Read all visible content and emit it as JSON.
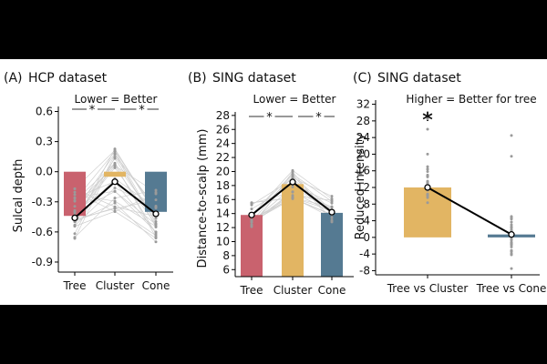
{
  "chart_data": [
    {
      "type": "bar",
      "panel_label": "(A)",
      "title": "HCP dataset",
      "annotation": "Lower = Better",
      "significance": [
        "*",
        "*"
      ],
      "categories": [
        "Tree",
        "Cluster",
        "Cone"
      ],
      "values": [
        -0.44,
        -0.05,
        -0.4
      ],
      "mean_line": [
        -0.46,
        -0.1,
        -0.42
      ],
      "error": [
        0.02,
        0.02,
        0.02
      ],
      "colors": [
        "#c9626e",
        "#e2b563",
        "#557a92"
      ],
      "ylabel": "Sulcal depth",
      "xlabel": "",
      "yticks": [
        "0.6",
        "0.3",
        "0.0",
        "-0.3",
        "-0.6",
        "-0.9"
      ],
      "ylim": [
        -1.0,
        0.65
      ]
    },
    {
      "type": "bar",
      "panel_label": "(B)",
      "title": "SING dataset",
      "annotation": "Lower = Better",
      "significance": [
        "*",
        "*"
      ],
      "categories": [
        "Tree",
        "Cluster",
        "Cone"
      ],
      "values": [
        13.8,
        18.2,
        14.1
      ],
      "mean_line": [
        13.8,
        18.5,
        14.2
      ],
      "error": [
        0.3,
        0.4,
        0.3
      ],
      "colors": [
        "#c9626e",
        "#e2b563",
        "#557a92"
      ],
      "ylabel": "Distance-to-scalp (mm)",
      "xlabel": "",
      "yticks": [
        "28",
        "26",
        "24",
        "22",
        "20",
        "18",
        "16",
        "14",
        "12",
        "10",
        "8",
        "6"
      ],
      "ylim": [
        5,
        28.5
      ]
    },
    {
      "type": "bar",
      "panel_label": "(C)",
      "title": "SING dataset",
      "annotation": "Higher = Better for tree",
      "significance": [
        "*"
      ],
      "categories": [
        "Tree vs Cluster",
        "Tree vs Cone"
      ],
      "values": [
        12,
        0.7
      ],
      "mean_line": [
        12,
        0.7
      ],
      "colors": [
        "#e2b563",
        "#557a92"
      ],
      "ylabel": "Reduced intensity",
      "xlabel": "",
      "yticks": [
        "32",
        "28",
        "24",
        "20",
        "16",
        "12",
        "8",
        "4",
        "0",
        "-4",
        "-8"
      ],
      "ylim": [
        -9,
        33
      ]
    }
  ]
}
